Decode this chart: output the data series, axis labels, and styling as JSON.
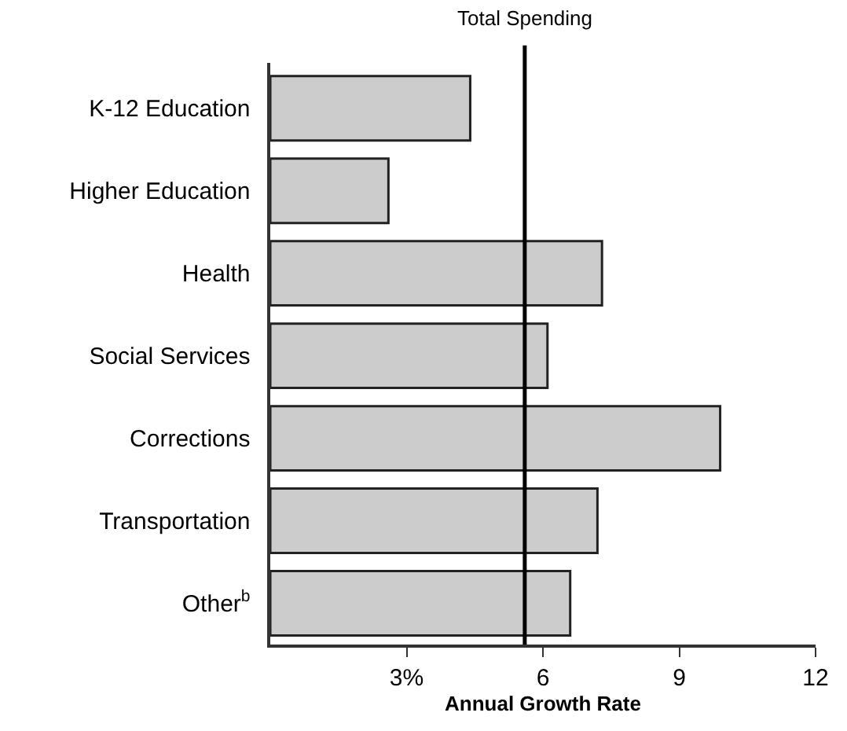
{
  "chart_data": {
    "type": "bar",
    "orientation": "horizontal",
    "xlabel": "Annual Growth Rate",
    "categories": [
      "K-12 Education",
      "Higher Education",
      "Health",
      "Social Services",
      "Corrections",
      "Transportation",
      "Other$^{b}$"
    ],
    "values": [
      4.4,
      2.6,
      7.3,
      6.1,
      9.9,
      7.2,
      6.6
    ],
    "color": "#cccccc",
    "xlim": [
      0,
      12
    ],
    "xticks": [
      {
        "value": 3,
        "label": "3%"
      },
      6,
      9,
      12
    ],
    "ref_lines": [
      {
        "axis": "x",
        "value": 5.6,
        "label": "Total Spending",
        "color": "#000000"
      }
    ],
    "legend": false
  }
}
